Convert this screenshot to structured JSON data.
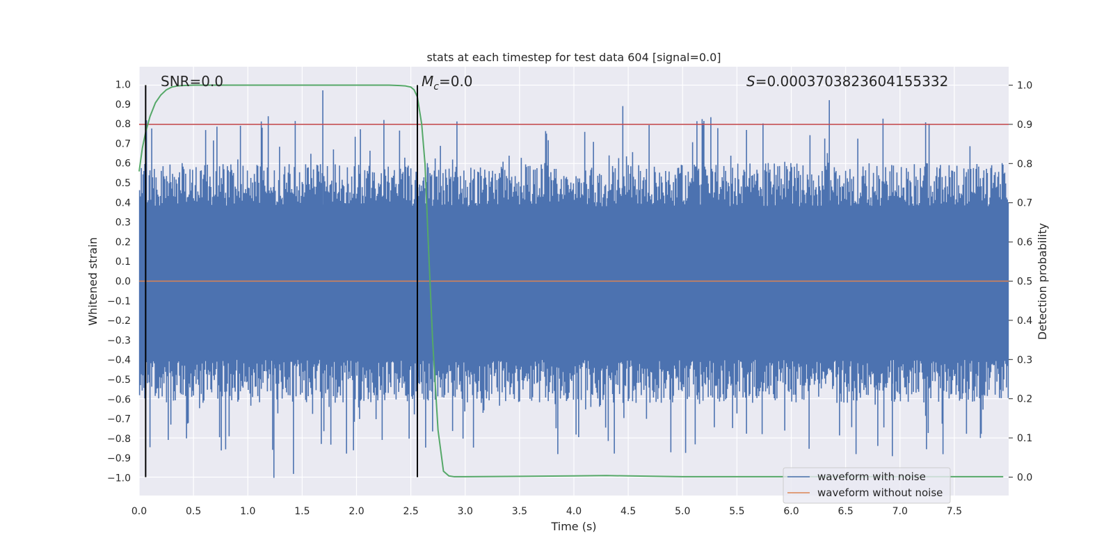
{
  "chart_data": {
    "type": "line",
    "title": "stats at each timestep for test data 604 [signal=0.0]",
    "xlabel": "Time (s)",
    "ylabel": "Whitened strain",
    "y2label": "Detection probability",
    "xlim": [
      0.0,
      8.0
    ],
    "ylim": [
      -1.09,
      1.09
    ],
    "y2lim": [
      -0.047,
      1.047
    ],
    "xticks": [
      "0.0",
      "0.5",
      "1.0",
      "1.5",
      "2.0",
      "2.5",
      "3.0",
      "3.5",
      "4.0",
      "4.5",
      "5.0",
      "5.5",
      "6.0",
      "6.5",
      "7.0",
      "7.5"
    ],
    "yticks": [
      "1.0",
      "0.9",
      "0.8",
      "0.7",
      "0.6",
      "0.5",
      "0.4",
      "0.3",
      "0.2",
      "0.1",
      "0.0",
      "-0.1",
      "-0.2",
      "-0.3",
      "-0.4",
      "-0.5",
      "-0.6",
      "-0.7",
      "-0.8",
      "-0.9",
      "-1.0"
    ],
    "y2ticks": [
      "1.0",
      "0.9",
      "0.8",
      "0.7",
      "0.6",
      "0.5",
      "0.4",
      "0.3",
      "0.2",
      "0.1",
      "0.0"
    ],
    "annotations": {
      "snr": "SNR=0.0",
      "mc_symbol": "M",
      "mc_sub": "c",
      "mc_value": "=0.0",
      "s_symbol": "S",
      "s_value": "=0.0003703823604155332"
    },
    "vlines": [
      0.06,
      2.56
    ],
    "threshold": 0.9,
    "series": [
      {
        "name": "waveform with noise",
        "color": "#4c72b0",
        "envelope_pos": 0.38,
        "envelope_neg": -0.4,
        "max": 0.97,
        "min": -1.0
      },
      {
        "name": "waveform without noise",
        "color": "#dd8452",
        "value": 0.0
      },
      {
        "name": "detection probability",
        "color": "#55a868",
        "x": [
          0.0,
          0.03,
          0.06,
          0.1,
          0.15,
          0.2,
          0.25,
          0.3,
          0.35,
          0.4,
          0.5,
          0.7,
          1.0,
          1.5,
          2.0,
          2.3,
          2.4,
          2.45,
          2.5,
          2.53,
          2.56,
          2.6,
          2.63,
          2.66,
          2.7,
          2.75,
          2.8,
          2.85,
          2.9,
          3.0,
          3.5,
          4.0,
          4.3,
          4.5,
          5.0,
          5.5,
          6.0,
          7.0,
          7.95
        ],
        "y": [
          0.78,
          0.84,
          0.88,
          0.92,
          0.955,
          0.975,
          0.988,
          0.995,
          0.998,
          0.999,
          1.0,
          1.0,
          1.0,
          1.0,
          1.0,
          1.0,
          0.999,
          0.998,
          0.995,
          0.988,
          0.97,
          0.9,
          0.8,
          0.6,
          0.35,
          0.12,
          0.015,
          0.003,
          0.001,
          0.001,
          0.002,
          0.003,
          0.004,
          0.003,
          0.001,
          0.001,
          0.001,
          0.001,
          0.001
        ]
      },
      {
        "name": "threshold",
        "color": "#c44e52",
        "value": 0.9
      }
    ],
    "legend": {
      "position": "lower-right",
      "entries": [
        "waveform with noise",
        "waveform without noise"
      ]
    }
  }
}
